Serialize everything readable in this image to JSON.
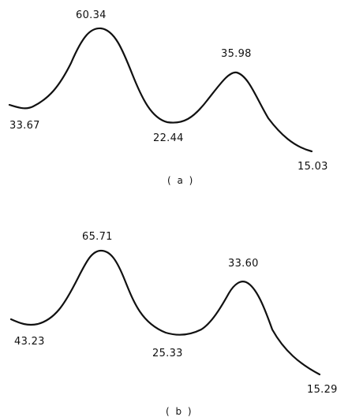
{
  "panels": [
    {
      "caption": "( a )",
      "points": [
        {
          "label": "33.67",
          "value": 33.67
        },
        {
          "label": "60.34",
          "value": 60.34
        },
        {
          "label": "22.44",
          "value": 22.44
        },
        {
          "label": "35.98",
          "value": 35.98
        },
        {
          "label": "15.03",
          "value": 15.03
        }
      ]
    },
    {
      "caption": "( b )",
      "points": [
        {
          "label": "43.23",
          "value": 43.23
        },
        {
          "label": "65.71",
          "value": 65.71
        },
        {
          "label": "25.33",
          "value": 25.33
        },
        {
          "label": "33.60",
          "value": 33.6
        },
        {
          "label": "15.29",
          "value": 15.29
        }
      ]
    }
  ]
}
